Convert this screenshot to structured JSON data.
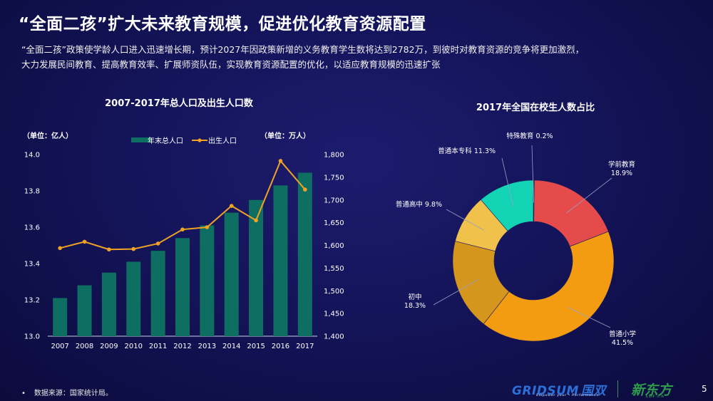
{
  "slide": {
    "title": "“全面二孩”扩大未来教育规模，促进优化教育资源配置",
    "intro_line1": "“全面二孩”政策使学龄人口进入迅速增长期，预计2027年因政策新增的义务教育学生数将达到2782万，到彼时对教育资源的竞争将更加激烈，",
    "intro_line2": "大力发展民间教育、提高教育效率、扩展师资队伍，实现教育资源配置的优化，以适应教育规模的迅速扩张",
    "footnote_bullet": "•",
    "footnote": "数据来源：国家统计局。",
    "page_number": "5",
    "logo_gridsum": "GRIDSUM",
    "logo_gridsum_cn": "国双",
    "logo_gridsum_sub": "Empower your • Performance",
    "logo_xdf": "新东方",
    "logo_xdf_sub": "XDF.CN"
  },
  "colors": {
    "bar": "#0f6e62",
    "line": "#f0a224",
    "axis": "#cfd2e6",
    "pie_special": "#1f7a63",
    "pie_preschool": "#e54b4b",
    "pie_primary": "#f39c12",
    "pie_junior": "#d4961d",
    "pie_senior": "#f0c14b",
    "pie_college": "#12d4b4"
  },
  "chart_data": [
    {
      "type": "bar",
      "title": "2007-2017年总人口及出生人口数",
      "categories": [
        "2007",
        "2008",
        "2009",
        "2010",
        "2011",
        "2012",
        "2013",
        "2014",
        "2015",
        "2016",
        "2017"
      ],
      "left_unit": "（单位：亿人）",
      "right_unit": "（单位：万人）",
      "ylim": [
        13.0,
        14.0
      ],
      "yticks": [
        "13.0",
        "13.2",
        "13.4",
        "13.6",
        "13.8",
        "14.0"
      ],
      "y2lim": [
        1400,
        1800
      ],
      "y2ticks": [
        "1,400",
        "1,450",
        "1,500",
        "1,550",
        "1,600",
        "1,650",
        "1,700",
        "1,750",
        "1,800"
      ],
      "legend_position": "top",
      "series": [
        {
          "name": "年末总人口",
          "kind": "bar",
          "axis": "left",
          "values": [
            13.21,
            13.28,
            13.35,
            13.41,
            13.47,
            13.54,
            13.61,
            13.68,
            13.75,
            13.83,
            13.9
          ]
        },
        {
          "name": "出生人口",
          "kind": "line",
          "axis": "right",
          "values": [
            1594,
            1608,
            1591,
            1592,
            1604,
            1635,
            1640,
            1687,
            1655,
            1786,
            1723
          ]
        }
      ]
    },
    {
      "type": "pie",
      "title": "2017年全国在校生人数占比",
      "donut": true,
      "slices": [
        {
          "name": "特殊教育",
          "value": 0.2,
          "label": "特殊教育 0.2%"
        },
        {
          "name": "学前教育",
          "value": 18.9,
          "label_name": "学前教育",
          "label_value": "18.9%"
        },
        {
          "name": "普通小学",
          "value": 41.5,
          "label_name": "普通小学",
          "label_value": "41.5%"
        },
        {
          "name": "初中",
          "value": 18.3,
          "label_name": "初中",
          "label_value": "18.3%"
        },
        {
          "name": "普通高中",
          "value": 9.8,
          "label": "普通高中 9.8%"
        },
        {
          "name": "普通本专科",
          "value": 11.3,
          "label": "普通本专科 11.3%"
        }
      ]
    }
  ]
}
